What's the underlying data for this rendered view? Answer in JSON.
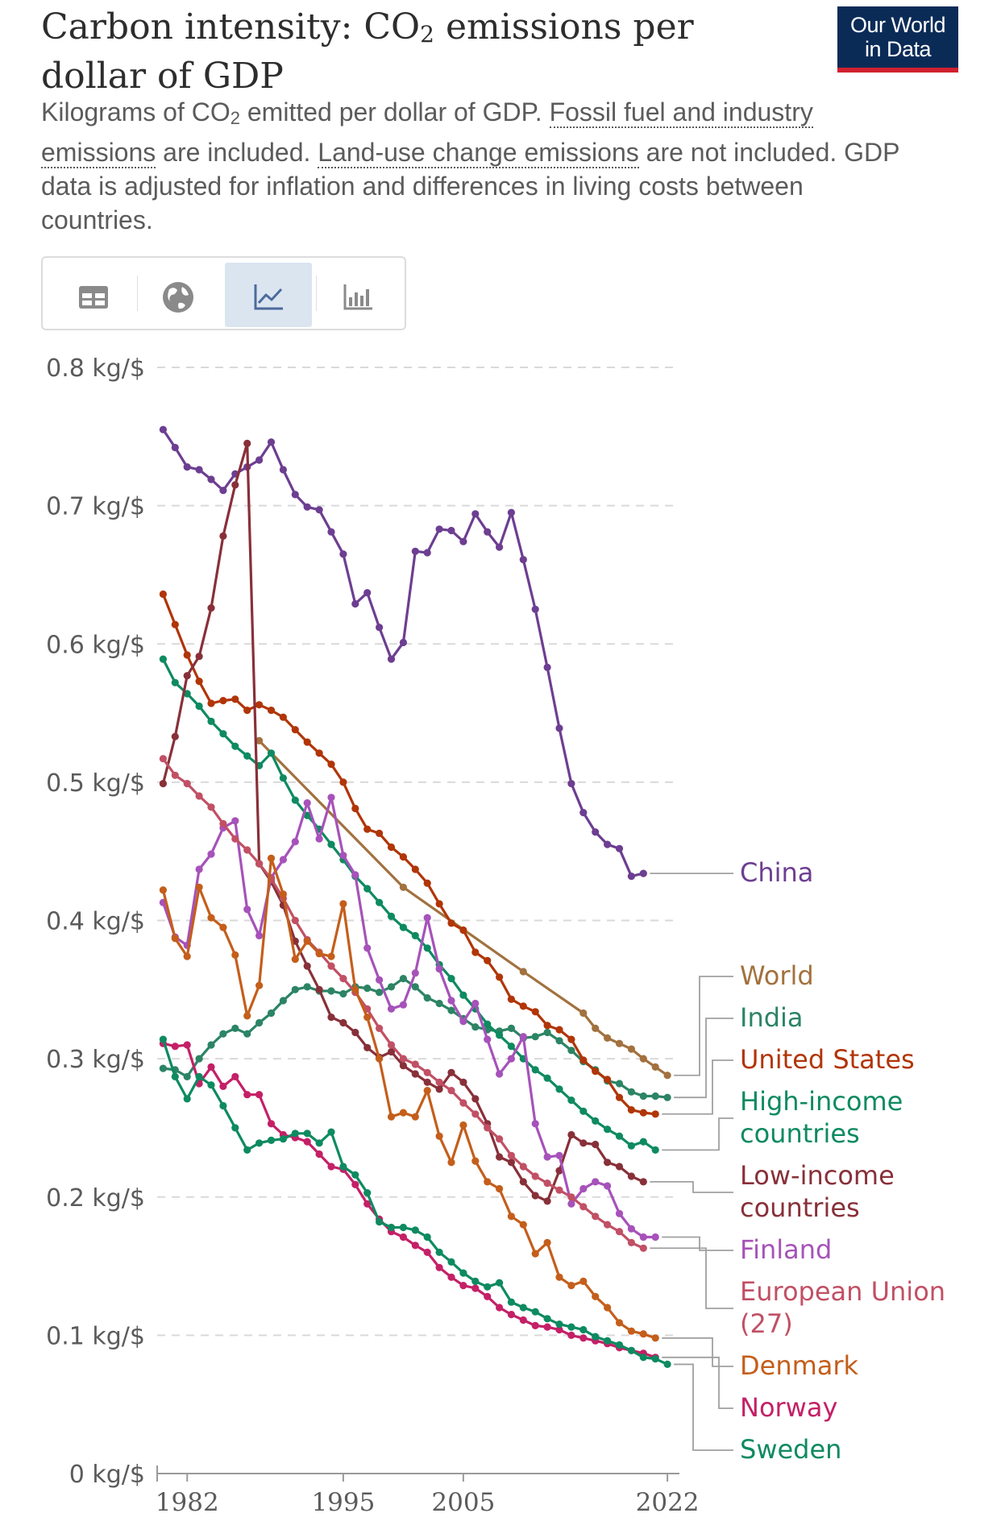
{
  "header": {
    "title_pre": "Carbon intensity: CO",
    "title_sub": "2",
    "title_post": " emissions per dollar of GDP",
    "logo_line1": "Our World",
    "logo_line2": "in Data",
    "subtitle_a": "Kilograms of CO",
    "subtitle_sub": "2",
    "subtitle_b": " emitted per dollar of GDP. ",
    "subtitle_link1": "Fossil fuel and industry emissions",
    "subtitle_c": " are included. ",
    "subtitle_link2": "Land-use change emissions",
    "subtitle_d": " are not included. GDP data is adjusted for inflation and differences in living costs between countries."
  },
  "tabs": [
    {
      "name": "table",
      "icon": "table-icon"
    },
    {
      "name": "map",
      "icon": "globe-icon"
    },
    {
      "name": "line",
      "icon": "line-chart-icon",
      "active": true
    },
    {
      "name": "bar",
      "icon": "bar-chart-icon"
    }
  ],
  "chart_data": {
    "type": "line",
    "title": "Carbon intensity: CO₂ emissions per dollar of GDP",
    "ylabel": "kg/$",
    "ylim": [
      0,
      0.8
    ],
    "xlim": [
      1979.5,
      2023
    ],
    "yticks": [
      {
        "v": 0,
        "label": "0 kg/$"
      },
      {
        "v": 0.1,
        "label": "0.1 kg/$"
      },
      {
        "v": 0.2,
        "label": "0.2 kg/$"
      },
      {
        "v": 0.3,
        "label": "0.3 kg/$"
      },
      {
        "v": 0.4,
        "label": "0.4 kg/$"
      },
      {
        "v": 0.5,
        "label": "0.5 kg/$"
      },
      {
        "v": 0.6,
        "label": "0.6 kg/$"
      },
      {
        "v": 0.7,
        "label": "0.7 kg/$"
      },
      {
        "v": 0.8,
        "label": "0.8 kg/$"
      }
    ],
    "xticks": [
      {
        "v": 1982,
        "label": "1982"
      },
      {
        "v": 1995,
        "label": "1995"
      },
      {
        "v": 2005,
        "label": "2005"
      },
      {
        "v": 2022,
        "label": "2022"
      }
    ],
    "series": [
      {
        "name": "China",
        "color": "#6d3e91",
        "labelLines": [
          "China"
        ],
        "start": 1980,
        "values": [
          0.755,
          0.742,
          0.728,
          0.726,
          0.719,
          0.711,
          0.723,
          0.728,
          0.733,
          0.746,
          0.726,
          0.708,
          0.699,
          0.697,
          0.681,
          0.665,
          0.629,
          0.637,
          0.612,
          0.589,
          0.601,
          0.667,
          0.666,
          0.683,
          0.682,
          0.674,
          0.694,
          0.681,
          0.67,
          0.695,
          0.661,
          0.625,
          0.583,
          0.539,
          0.499,
          0.478,
          0.464,
          0.455,
          0.452,
          0.432,
          0.434
        ]
      },
      {
        "name": "World",
        "color": "#a2713e",
        "labelLines": [
          "World"
        ],
        "points": [
          [
            1988,
            0.53
          ],
          [
            2000,
            0.424
          ],
          [
            2010,
            0.363
          ],
          [
            2015,
            0.333
          ],
          [
            2016,
            0.322
          ],
          [
            2017,
            0.315
          ],
          [
            2018,
            0.311
          ],
          [
            2019,
            0.307
          ],
          [
            2020,
            0.3
          ],
          [
            2021,
            0.294
          ],
          [
            2022,
            0.288
          ]
        ]
      },
      {
        "name": "India",
        "color": "#2c8465",
        "labelLines": [
          "India"
        ],
        "start": 1980,
        "values": [
          0.293,
          0.292,
          0.287,
          0.3,
          0.31,
          0.318,
          0.322,
          0.318,
          0.326,
          0.333,
          0.342,
          0.35,
          0.352,
          0.349,
          0.349,
          0.347,
          0.352,
          0.351,
          0.348,
          0.352,
          0.358,
          0.352,
          0.344,
          0.34,
          0.335,
          0.329,
          0.323,
          0.321,
          0.32,
          0.322,
          0.315,
          0.316,
          0.319,
          0.313,
          0.306,
          0.298,
          0.292,
          0.284,
          0.282,
          0.276,
          0.273,
          0.273,
          0.272
        ]
      },
      {
        "name": "United States",
        "color": "#b13507",
        "labelLines": [
          "United States"
        ],
        "start": 1980,
        "values": [
          0.636,
          0.614,
          0.592,
          0.573,
          0.557,
          0.559,
          0.56,
          0.552,
          0.556,
          0.552,
          0.547,
          0.538,
          0.529,
          0.521,
          0.513,
          0.5,
          0.481,
          0.466,
          0.463,
          0.453,
          0.446,
          0.437,
          0.427,
          0.412,
          0.398,
          0.393,
          0.377,
          0.371,
          0.359,
          0.343,
          0.338,
          0.334,
          0.324,
          0.321,
          0.314,
          0.299,
          0.291,
          0.285,
          0.272,
          0.263,
          0.261,
          0.26
        ]
      },
      {
        "name": "High-income countries",
        "color": "#0e8a61",
        "labelLines": [
          "High-income",
          "countries"
        ],
        "start": 1980,
        "values": [
          0.589,
          0.572,
          0.564,
          0.555,
          0.544,
          0.535,
          0.526,
          0.519,
          0.512,
          0.521,
          0.503,
          0.487,
          0.476,
          0.466,
          0.455,
          0.444,
          0.432,
          0.423,
          0.413,
          0.403,
          0.395,
          0.389,
          0.38,
          0.368,
          0.358,
          0.346,
          0.336,
          0.325,
          0.317,
          0.309,
          0.3,
          0.292,
          0.286,
          0.278,
          0.27,
          0.262,
          0.255,
          0.249,
          0.244,
          0.237,
          0.24,
          0.234
        ]
      },
      {
        "name": "Low-income countries",
        "color": "#883039",
        "labelLines": [
          "Low-income",
          "countries"
        ],
        "start": 1980,
        "values": [
          0.499,
          0.533,
          0.577,
          0.591,
          0.626,
          0.678,
          0.715,
          0.745,
          0.441,
          0.428,
          0.411,
          0.385,
          0.367,
          0.35,
          0.33,
          0.326,
          0.319,
          0.308,
          0.301,
          0.305,
          0.295,
          0.289,
          0.283,
          0.278,
          0.29,
          0.283,
          0.271,
          0.253,
          0.229,
          0.225,
          0.211,
          0.201,
          0.197,
          0.219,
          0.245,
          0.239,
          0.238,
          0.225,
          0.222,
          0.215,
          0.211
        ]
      },
      {
        "name": "Finland",
        "color": "#a652ba",
        "labelLines": [
          "Finland"
        ],
        "start": 1980,
        "values": [
          0.413,
          0.388,
          0.382,
          0.437,
          0.448,
          0.467,
          0.472,
          0.408,
          0.389,
          0.431,
          0.444,
          0.457,
          0.485,
          0.459,
          0.489,
          0.447,
          0.433,
          0.38,
          0.357,
          0.336,
          0.339,
          0.362,
          0.402,
          0.365,
          0.342,
          0.327,
          0.34,
          0.314,
          0.289,
          0.3,
          0.316,
          0.253,
          0.229,
          0.23,
          0.195,
          0.206,
          0.211,
          0.208,
          0.188,
          0.177,
          0.171,
          0.171
        ]
      },
      {
        "name": "European Union (27)",
        "color": "#c15065",
        "labelLines": [
          "European Union",
          "(27)"
        ],
        "start": 1980,
        "values": [
          0.517,
          0.505,
          0.499,
          0.49,
          0.482,
          0.47,
          0.459,
          0.451,
          0.441,
          0.43,
          0.416,
          0.4,
          0.386,
          0.377,
          0.367,
          0.358,
          0.348,
          0.336,
          0.322,
          0.31,
          0.3,
          0.296,
          0.29,
          0.283,
          0.277,
          0.268,
          0.26,
          0.25,
          0.242,
          0.23,
          0.222,
          0.215,
          0.21,
          0.205,
          0.2,
          0.193,
          0.186,
          0.18,
          0.175,
          0.167,
          0.163
        ]
      },
      {
        "name": "Denmark",
        "color": "#c45e1b",
        "labelLines": [
          "Denmark"
        ],
        "start": 1980,
        "values": [
          0.422,
          0.387,
          0.374,
          0.424,
          0.402,
          0.395,
          0.375,
          0.331,
          0.353,
          0.445,
          0.419,
          0.372,
          0.385,
          0.376,
          0.374,
          0.412,
          0.35,
          0.33,
          0.3,
          0.258,
          0.261,
          0.258,
          0.277,
          0.244,
          0.225,
          0.252,
          0.226,
          0.211,
          0.206,
          0.186,
          0.18,
          0.159,
          0.167,
          0.142,
          0.136,
          0.139,
          0.128,
          0.12,
          0.109,
          0.103,
          0.101,
          0.098
        ]
      },
      {
        "name": "Norway",
        "color": "#c42067",
        "labelLines": [
          "Norway"
        ],
        "start": 1980,
        "values": [
          0.311,
          0.309,
          0.31,
          0.282,
          0.294,
          0.28,
          0.287,
          0.274,
          0.274,
          0.253,
          0.245,
          0.243,
          0.24,
          0.231,
          0.222,
          0.22,
          0.209,
          0.195,
          0.184,
          0.175,
          0.171,
          0.165,
          0.16,
          0.149,
          0.142,
          0.136,
          0.134,
          0.128,
          0.12,
          0.115,
          0.111,
          0.107,
          0.106,
          0.104,
          0.1,
          0.098,
          0.096,
          0.094,
          0.091,
          0.089,
          0.087,
          0.084
        ]
      },
      {
        "name": "Sweden",
        "color": "#0e8a61",
        "labelLines": [
          "Sweden"
        ],
        "start": 1980,
        "values": [
          0.314,
          0.287,
          0.271,
          0.287,
          0.281,
          0.266,
          0.25,
          0.234,
          0.239,
          0.241,
          0.242,
          0.246,
          0.246,
          0.239,
          0.247,
          0.222,
          0.216,
          0.203,
          0.182,
          0.178,
          0.178,
          0.176,
          0.171,
          0.16,
          0.153,
          0.145,
          0.139,
          0.135,
          0.138,
          0.124,
          0.12,
          0.117,
          0.112,
          0.108,
          0.106,
          0.104,
          0.099,
          0.096,
          0.093,
          0.089,
          0.084,
          0.083,
          0.079
        ]
      }
    ]
  }
}
